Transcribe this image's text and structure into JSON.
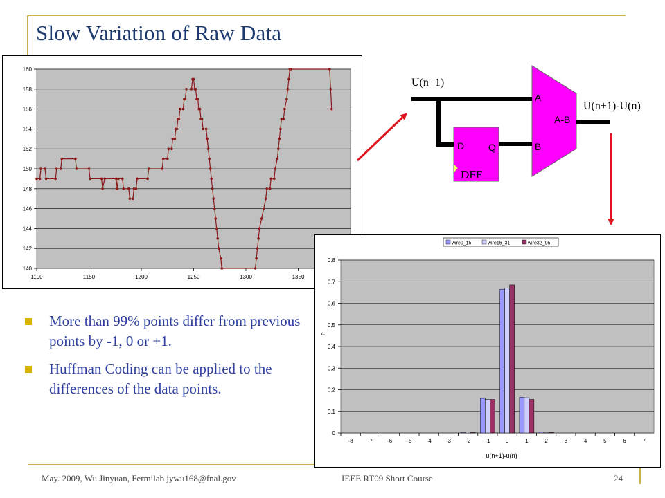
{
  "slide": {
    "title": "Slow Variation of Raw Data",
    "bullets": [
      "More than 99% points differ from previous points by -1, 0 or +1.",
      "Huffman Coding can be applied to the differences of the data points."
    ],
    "footer": {
      "left": "May. 2009, Wu Jinyuan, Fermilab jywu168@fnal.gov",
      "center": "IEEE RT09 Short Course",
      "page": "24"
    },
    "accent_colors": {
      "title": "#1c3a6e",
      "bullet_text": "#2e3fa0",
      "bullet_marker": "#d9b300",
      "frame_line": "#c8b04a",
      "arrow": "#e0141c"
    }
  },
  "diagram": {
    "input_label": "U(n+1)",
    "output_label": "U(n+1)-U(n)",
    "dff_label": "DFF",
    "d_pin": "D",
    "q_pin": "Q",
    "alu_a": "A",
    "alu_b": "B",
    "alu_op": "A-B",
    "block_color": "#ff00ff"
  },
  "chart_data": [
    {
      "type": "line",
      "title": "",
      "xlabel": "",
      "ylabel": "",
      "xlim": [
        1100,
        1400
      ],
      "ylim": [
        140,
        160
      ],
      "x_ticks": [
        1100,
        1150,
        1200,
        1250,
        1300,
        1350
      ],
      "y_ticks": [
        140,
        142,
        144,
        146,
        148,
        150,
        152,
        154,
        156,
        158,
        160
      ],
      "grid": true,
      "plot_background": "#c0c0c0",
      "series": [
        {
          "color": "#8b1a1a",
          "points": [
            [
              1100,
              149
            ],
            [
              1103,
              149
            ],
            [
              1104,
              150
            ],
            [
              1108,
              150
            ],
            [
              1109,
              149
            ],
            [
              1118,
              149
            ],
            [
              1119,
              150
            ],
            [
              1123,
              150
            ],
            [
              1124,
              151
            ],
            [
              1137,
              151
            ],
            [
              1138,
              150
            ],
            [
              1150,
              150
            ],
            [
              1151,
              149
            ],
            [
              1162,
              149
            ],
            [
              1163,
              148
            ],
            [
              1165,
              149
            ],
            [
              1176,
              149
            ],
            [
              1177,
              148
            ],
            [
              1178,
              149
            ],
            [
              1182,
              149
            ],
            [
              1183,
              148
            ],
            [
              1188,
              148
            ],
            [
              1189,
              147
            ],
            [
              1192,
              147
            ],
            [
              1193,
              148
            ],
            [
              1195,
              148
            ],
            [
              1196,
              149
            ],
            [
              1206,
              149
            ],
            [
              1207,
              150
            ],
            [
              1220,
              150
            ],
            [
              1221,
              151
            ],
            [
              1225,
              151
            ],
            [
              1226,
              152
            ],
            [
              1229,
              152
            ],
            [
              1230,
              153
            ],
            [
              1232,
              153
            ],
            [
              1233,
              154
            ],
            [
              1234,
              154
            ],
            [
              1235,
              155
            ],
            [
              1236,
              155
            ],
            [
              1237,
              156
            ],
            [
              1240,
              156
            ],
            [
              1241,
              157
            ],
            [
              1242,
              157
            ],
            [
              1243,
              158
            ],
            [
              1248,
              158
            ],
            [
              1249,
              159
            ],
            [
              1250,
              159
            ],
            [
              1251,
              158
            ],
            [
              1252,
              158
            ],
            [
              1253,
              157
            ],
            [
              1254,
              157
            ],
            [
              1255,
              156
            ],
            [
              1256,
              156
            ],
            [
              1257,
              155
            ],
            [
              1258,
              155
            ],
            [
              1259,
              154
            ],
            [
              1262,
              154
            ],
            [
              1263,
              153
            ],
            [
              1264,
              152
            ],
            [
              1265,
              151
            ],
            [
              1266,
              150
            ],
            [
              1267,
              149
            ],
            [
              1268,
              148
            ],
            [
              1269,
              147
            ],
            [
              1270,
              146
            ],
            [
              1271,
              145
            ],
            [
              1272,
              144
            ],
            [
              1273,
              143
            ],
            [
              1274,
              142
            ],
            [
              1276,
              141
            ],
            [
              1277,
              140
            ],
            [
              1309,
              140
            ],
            [
              1310,
              141
            ],
            [
              1311,
              142
            ],
            [
              1312,
              143
            ],
            [
              1313,
              144
            ],
            [
              1315,
              145
            ],
            [
              1317,
              146
            ],
            [
              1319,
              147
            ],
            [
              1320,
              148
            ],
            [
              1323,
              148
            ],
            [
              1324,
              149
            ],
            [
              1327,
              149
            ],
            [
              1328,
              150
            ],
            [
              1330,
              151
            ],
            [
              1331,
              152
            ],
            [
              1332,
              153
            ],
            [
              1333,
              154
            ],
            [
              1334,
              155
            ],
            [
              1336,
              155
            ],
            [
              1337,
              156
            ],
            [
              1339,
              157
            ],
            [
              1340,
              158
            ],
            [
              1341,
              159
            ],
            [
              1342,
              160
            ],
            [
              1343,
              160
            ],
            [
              1380,
              160
            ],
            [
              1381,
              158
            ],
            [
              1382,
              156
            ]
          ]
        }
      ]
    },
    {
      "type": "bar",
      "title": "",
      "xlabel": "u(n+1)-u(n)",
      "ylabel": "P",
      "categories": [
        "-8",
        "-7",
        "-6",
        "-5",
        "-4",
        "-3",
        "-2",
        "-1",
        "0",
        "1",
        "2",
        "3",
        "4",
        "5",
        "6",
        "7"
      ],
      "ylim": [
        0,
        0.8
      ],
      "y_ticks": [
        "0",
        "0.1",
        "0.2",
        "0.3",
        "0.4",
        "0.5",
        "0.6",
        "0.7",
        "0.8"
      ],
      "grid": true,
      "plot_background": "#c0c0c0",
      "legend_position": "top",
      "series": [
        {
          "name": "wire0_15",
          "color": "#9999ff",
          "values": [
            0,
            0,
            0,
            0,
            0,
            0,
            0.003,
            0.16,
            0.665,
            0.165,
            0.004,
            0,
            0,
            0,
            0,
            0
          ]
        },
        {
          "name": "wire16_31",
          "color": "#cfcfff",
          "values": [
            0,
            0,
            0,
            0,
            0,
            0,
            0.004,
            0.155,
            0.67,
            0.163,
            0.003,
            0,
            0,
            0,
            0,
            0
          ]
        },
        {
          "name": "wire32_95",
          "color": "#993366",
          "values": [
            0,
            0,
            0,
            0,
            0,
            0,
            0.003,
            0.155,
            0.685,
            0.155,
            0.003,
            0,
            0,
            0,
            0,
            0
          ]
        }
      ]
    }
  ]
}
